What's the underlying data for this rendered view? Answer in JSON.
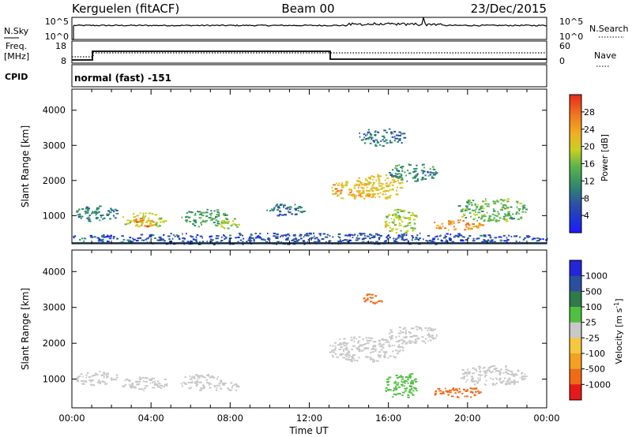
{
  "header": {
    "station": "Kerguelen (fitACF)",
    "beam": "Beam 00",
    "date": "23/Dec/2015"
  },
  "panels": {
    "sky": {
      "left_label": "N.Sky",
      "right_label": "N.Search",
      "left_ticks": [
        "10^5",
        "10^0"
      ],
      "right_ticks": [
        "10^5",
        "10^0"
      ]
    },
    "freq": {
      "left_label_1": "Freq.",
      "left_label_2": "[MHz]",
      "left_ticks": [
        "18",
        "8"
      ],
      "right_label": "Nave",
      "right_ticks": [
        "60",
        "0"
      ]
    },
    "cpid": {
      "label": "CPID",
      "text": "normal (fast) -151"
    }
  },
  "colors": {
    "power": [
      "#1a1aff",
      "#2a4fa8",
      "#2f8a6a",
      "#5ab54a",
      "#c8d020",
      "#f0b020",
      "#f07820",
      "#e82a1a"
    ],
    "velocity": [
      "#e81818",
      "#f06a18",
      "#f4a020",
      "#f5c840",
      "#c8c8c8",
      "#4fc040",
      "#2e7a4a",
      "#2a4fa0",
      "#2424d8"
    ]
  },
  "chart_data": [
    {
      "type": "heatmap",
      "name": "power",
      "xlabel": "",
      "ylabel": "Slant Range [km]",
      "xlim": [
        0,
        24
      ],
      "ylim": [
        200,
        4600
      ],
      "yticks": [
        1000,
        2000,
        3000,
        4000
      ],
      "colorbar": {
        "label": "Power [dB]",
        "range": [
          0,
          32
        ],
        "ticks": [
          "4",
          "8",
          "12",
          "16",
          "20",
          "24",
          "28"
        ]
      },
      "regions": [
        {
          "x": [
            0.2,
            2.3
          ],
          "y": [
            850,
            1300
          ],
          "value": 9
        },
        {
          "x": [
            2.5,
            4.8
          ],
          "y": [
            700,
            1100
          ],
          "value": 18
        },
        {
          "x": [
            3.0,
            4.2
          ],
          "y": [
            700,
            950
          ],
          "value": 26
        },
        {
          "x": [
            5.5,
            7.8
          ],
          "y": [
            700,
            1200
          ],
          "value": 12
        },
        {
          "x": [
            7.4,
            8.4
          ],
          "y": [
            650,
            950
          ],
          "value": 17
        },
        {
          "x": [
            9.8,
            11.8
          ],
          "y": [
            1000,
            1350
          ],
          "value": 8
        },
        {
          "x": [
            13.0,
            15.5
          ],
          "y": [
            1500,
            2000
          ],
          "value": 22
        },
        {
          "x": [
            14.3,
            16.7
          ],
          "y": [
            1500,
            2200
          ],
          "value": 20
        },
        {
          "x": [
            16.0,
            18.5
          ],
          "y": [
            2000,
            2500
          ],
          "value": 10
        },
        {
          "x": [
            14.5,
            16.8
          ],
          "y": [
            3000,
            3500
          ],
          "value": 8
        },
        {
          "x": [
            15.8,
            17.5
          ],
          "y": [
            500,
            1200
          ],
          "value": 17
        },
        {
          "x": [
            18.2,
            20.7
          ],
          "y": [
            600,
            900
          ],
          "value": 24
        },
        {
          "x": [
            19.5,
            23.0
          ],
          "y": [
            850,
            1500
          ],
          "value": 14
        },
        {
          "x": [
            0.0,
            24.0
          ],
          "y": [
            200,
            520
          ],
          "value": 6
        }
      ]
    },
    {
      "type": "heatmap",
      "name": "velocity",
      "xlabel": "Time UT",
      "ylabel": "Slant Range [km]",
      "xlim": [
        0,
        24
      ],
      "ylim": [
        200,
        4600
      ],
      "xticks": [
        "00:00",
        "04:00",
        "08:00",
        "12:00",
        "16:00",
        "20:00",
        "00:00"
      ],
      "yticks": [
        1000,
        2000,
        3000,
        4000
      ],
      "colorbar": {
        "label": "Velocity [m s^-1]",
        "ticks": [
          "1000",
          "500",
          "100",
          "25",
          "-25",
          "-100",
          "-500",
          "-1000"
        ]
      },
      "regions": [
        {
          "x": [
            0.2,
            2.3
          ],
          "y": [
            850,
            1250
          ],
          "value": 0
        },
        {
          "x": [
            2.5,
            4.8
          ],
          "y": [
            700,
            1100
          ],
          "value": 0
        },
        {
          "x": [
            5.5,
            7.8
          ],
          "y": [
            700,
            1150
          ],
          "value": 0
        },
        {
          "x": [
            7.4,
            8.4
          ],
          "y": [
            650,
            950
          ],
          "value": 0
        },
        {
          "x": [
            13.0,
            16.7
          ],
          "y": [
            1500,
            2200
          ],
          "value": 0
        },
        {
          "x": [
            16.0,
            18.5
          ],
          "y": [
            2000,
            2500
          ],
          "value": 0
        },
        {
          "x": [
            14.7,
            15.7
          ],
          "y": [
            3100,
            3400
          ],
          "value": -150
        },
        {
          "x": [
            15.8,
            17.5
          ],
          "y": [
            500,
            1200
          ],
          "value": 60
        },
        {
          "x": [
            18.2,
            20.7
          ],
          "y": [
            500,
            800
          ],
          "value": -120
        },
        {
          "x": [
            19.5,
            23.0
          ],
          "y": [
            850,
            1400
          ],
          "value": 0
        }
      ]
    }
  ]
}
